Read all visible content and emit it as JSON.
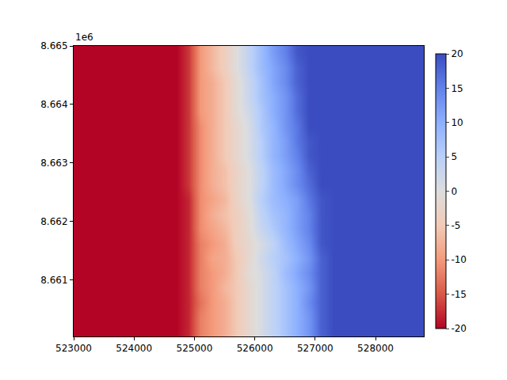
{
  "chart_data": {
    "type": "heatmap",
    "x": [
      523100,
      523300,
      523500,
      523700,
      523900,
      524100,
      524300,
      524500,
      524700,
      524900,
      525100,
      525300,
      525500,
      525700,
      525900,
      526100,
      526300,
      526500,
      526700,
      526900,
      527100,
      527300,
      527500,
      527700,
      527900,
      528100,
      528300,
      528500,
      528700
    ],
    "y": [
      8660125,
      8660375,
      8660625,
      8660875,
      8661125,
      8661375,
      8661625,
      8661875,
      8662125,
      8662375,
      8662625,
      8662875,
      8663125,
      8663375,
      8663625,
      8663875,
      8664125,
      8664375,
      8664625,
      8664875
    ],
    "cells": [
      [
        -20,
        -20,
        -20,
        -20,
        -20,
        -20,
        -20,
        -20,
        -20,
        -18,
        -12,
        -10,
        -8,
        -5,
        -2,
        1,
        4,
        7,
        10,
        13,
        18,
        20,
        20,
        20,
        20,
        20,
        20,
        20,
        20
      ],
      [
        -20,
        -20,
        -20,
        -20,
        -20,
        -20,
        -20,
        -20,
        -20,
        -18,
        -12,
        -10,
        -8,
        -5,
        -2,
        1,
        4,
        7,
        10,
        13,
        18,
        20,
        20,
        20,
        20,
        20,
        20,
        20,
        20
      ],
      [
        -20,
        -20,
        -20,
        -20,
        -20,
        -20,
        -20,
        -20,
        -20,
        -18,
        -13,
        -10,
        -8,
        -5,
        -2,
        1,
        4,
        7,
        10,
        14,
        18,
        20,
        20,
        20,
        20,
        20,
        20,
        20,
        20
      ],
      [
        -20,
        -20,
        -20,
        -20,
        -20,
        -20,
        -20,
        -20,
        -20,
        -18,
        -12,
        -10,
        -7,
        -5,
        -2,
        1,
        4,
        7,
        10,
        13,
        18,
        20,
        20,
        20,
        20,
        20,
        20,
        20,
        20
      ],
      [
        -20,
        -20,
        -20,
        -20,
        -20,
        -20,
        -20,
        -20,
        -20,
        -18,
        -12,
        -10,
        -8,
        -5,
        -1,
        1,
        4,
        8,
        11,
        14,
        18,
        20,
        20,
        20,
        20,
        20,
        20,
        20,
        20
      ],
      [
        -20,
        -20,
        -20,
        -20,
        -20,
        -20,
        -20,
        -20,
        -20,
        -18,
        -12,
        -9,
        -8,
        -5,
        -2,
        2,
        5,
        7,
        10,
        13,
        18,
        20,
        20,
        20,
        20,
        20,
        20,
        20,
        20
      ],
      [
        -20,
        -20,
        -20,
        -20,
        -20,
        -20,
        -20,
        -20,
        -20,
        -18,
        -12,
        -10,
        -8,
        -4,
        -2,
        1,
        4,
        8,
        11,
        14,
        19,
        20,
        20,
        20,
        20,
        20,
        20,
        20,
        20
      ],
      [
        -20,
        -20,
        -20,
        -20,
        -20,
        -20,
        -20,
        -20,
        -20,
        -18,
        -11,
        -9,
        -7,
        -4,
        -1,
        3,
        6,
        9,
        12,
        15,
        19,
        20,
        20,
        20,
        20,
        20,
        20,
        20,
        20
      ],
      [
        -20,
        -20,
        -20,
        -20,
        -20,
        -20,
        -20,
        -20,
        -20,
        -18,
        -11,
        -8,
        -6,
        -4,
        -1,
        4,
        7,
        9,
        12,
        15,
        19,
        20,
        20,
        20,
        20,
        20,
        20,
        20,
        20
      ],
      [
        -20,
        -20,
        -20,
        -20,
        -20,
        -20,
        -20,
        -20,
        -20,
        -18,
        -11,
        -9,
        -7,
        -3,
        0,
        5,
        8,
        10,
        12,
        16,
        19,
        20,
        20,
        20,
        20,
        20,
        20,
        20,
        20
      ],
      [
        -20,
        -20,
        -20,
        -20,
        -20,
        -20,
        -20,
        -20,
        -20,
        -17,
        -11,
        -8,
        -6,
        -3,
        0,
        4,
        8,
        11,
        14,
        17,
        20,
        20,
        20,
        20,
        20,
        20,
        20,
        20,
        20
      ],
      [
        -20,
        -20,
        -20,
        -20,
        -20,
        -20,
        -20,
        -20,
        -20,
        -17,
        -11,
        -8,
        -6,
        -3,
        0,
        4,
        8,
        11,
        14,
        18,
        20,
        20,
        20,
        20,
        20,
        20,
        20,
        20,
        20
      ],
      [
        -20,
        -20,
        -20,
        -20,
        -20,
        -20,
        -20,
        -20,
        -20,
        -17,
        -11,
        -8,
        -5,
        -2,
        1,
        5,
        9,
        12,
        15,
        19,
        20,
        20,
        20,
        20,
        20,
        20,
        20,
        20,
        20
      ],
      [
        -20,
        -20,
        -20,
        -20,
        -20,
        -20,
        -20,
        -20,
        -20,
        -17,
        -11,
        -8,
        -5,
        -2,
        1,
        5,
        9,
        12,
        16,
        19,
        20,
        20,
        20,
        20,
        20,
        20,
        20,
        20,
        20
      ],
      [
        -20,
        -20,
        -20,
        -20,
        -20,
        -20,
        -20,
        -20,
        -20,
        -17,
        -11,
        -8,
        -5,
        -2,
        1,
        6,
        9,
        13,
        16,
        20,
        20,
        20,
        20,
        20,
        20,
        20,
        20,
        20,
        20
      ],
      [
        -20,
        -20,
        -20,
        -20,
        -20,
        -20,
        -20,
        -20,
        -20,
        -17,
        -10,
        -8,
        -5,
        -1,
        2,
        6,
        10,
        13,
        17,
        20,
        20,
        20,
        20,
        20,
        20,
        20,
        20,
        20,
        20
      ],
      [
        -20,
        -20,
        -20,
        -20,
        -20,
        -20,
        -20,
        -20,
        -20,
        -17,
        -10,
        -8,
        -5,
        -1,
        3,
        7,
        10,
        13,
        17,
        20,
        20,
        20,
        20,
        20,
        20,
        20,
        20,
        20,
        20
      ],
      [
        -20,
        -20,
        -20,
        -20,
        -20,
        -20,
        -20,
        -20,
        -20,
        -17,
        -10,
        -8,
        -5,
        -1,
        3,
        7,
        11,
        14,
        18,
        20,
        20,
        20,
        20,
        20,
        20,
        20,
        20,
        20,
        20
      ],
      [
        -20,
        -20,
        -20,
        -20,
        -20,
        -20,
        -20,
        -20,
        -20,
        -17,
        -10,
        -7,
        -4,
        0,
        4,
        8,
        11,
        14,
        18,
        20,
        20,
        20,
        20,
        20,
        20,
        20,
        20,
        20,
        20
      ],
      [
        -20,
        -20,
        -20,
        -20,
        -20,
        -20,
        -20,
        -20,
        -20,
        -17,
        -10,
        -7,
        -4,
        0,
        4,
        8,
        12,
        15,
        19,
        20,
        20,
        20,
        20,
        20,
        20,
        20,
        20,
        20,
        20
      ]
    ],
    "xlim": [
      523000,
      528800
    ],
    "ylim": [
      8660040,
      8665000
    ],
    "xticks": [
      523000,
      524000,
      525000,
      526000,
      527000,
      528000
    ],
    "yticks": [
      {
        "value": 8661000,
        "label": "8.661"
      },
      {
        "value": 8662000,
        "label": "8.662"
      },
      {
        "value": 8663000,
        "label": "8.663"
      },
      {
        "value": 8664000,
        "label": "8.664"
      },
      {
        "value": 8665000,
        "label": "8.665"
      }
    ],
    "clim": [
      -20,
      20
    ],
    "cticks": [
      -20,
      -15,
      -10,
      -5,
      0,
      5,
      10,
      15,
      20
    ],
    "annotations": [
      "1e6"
    ]
  }
}
